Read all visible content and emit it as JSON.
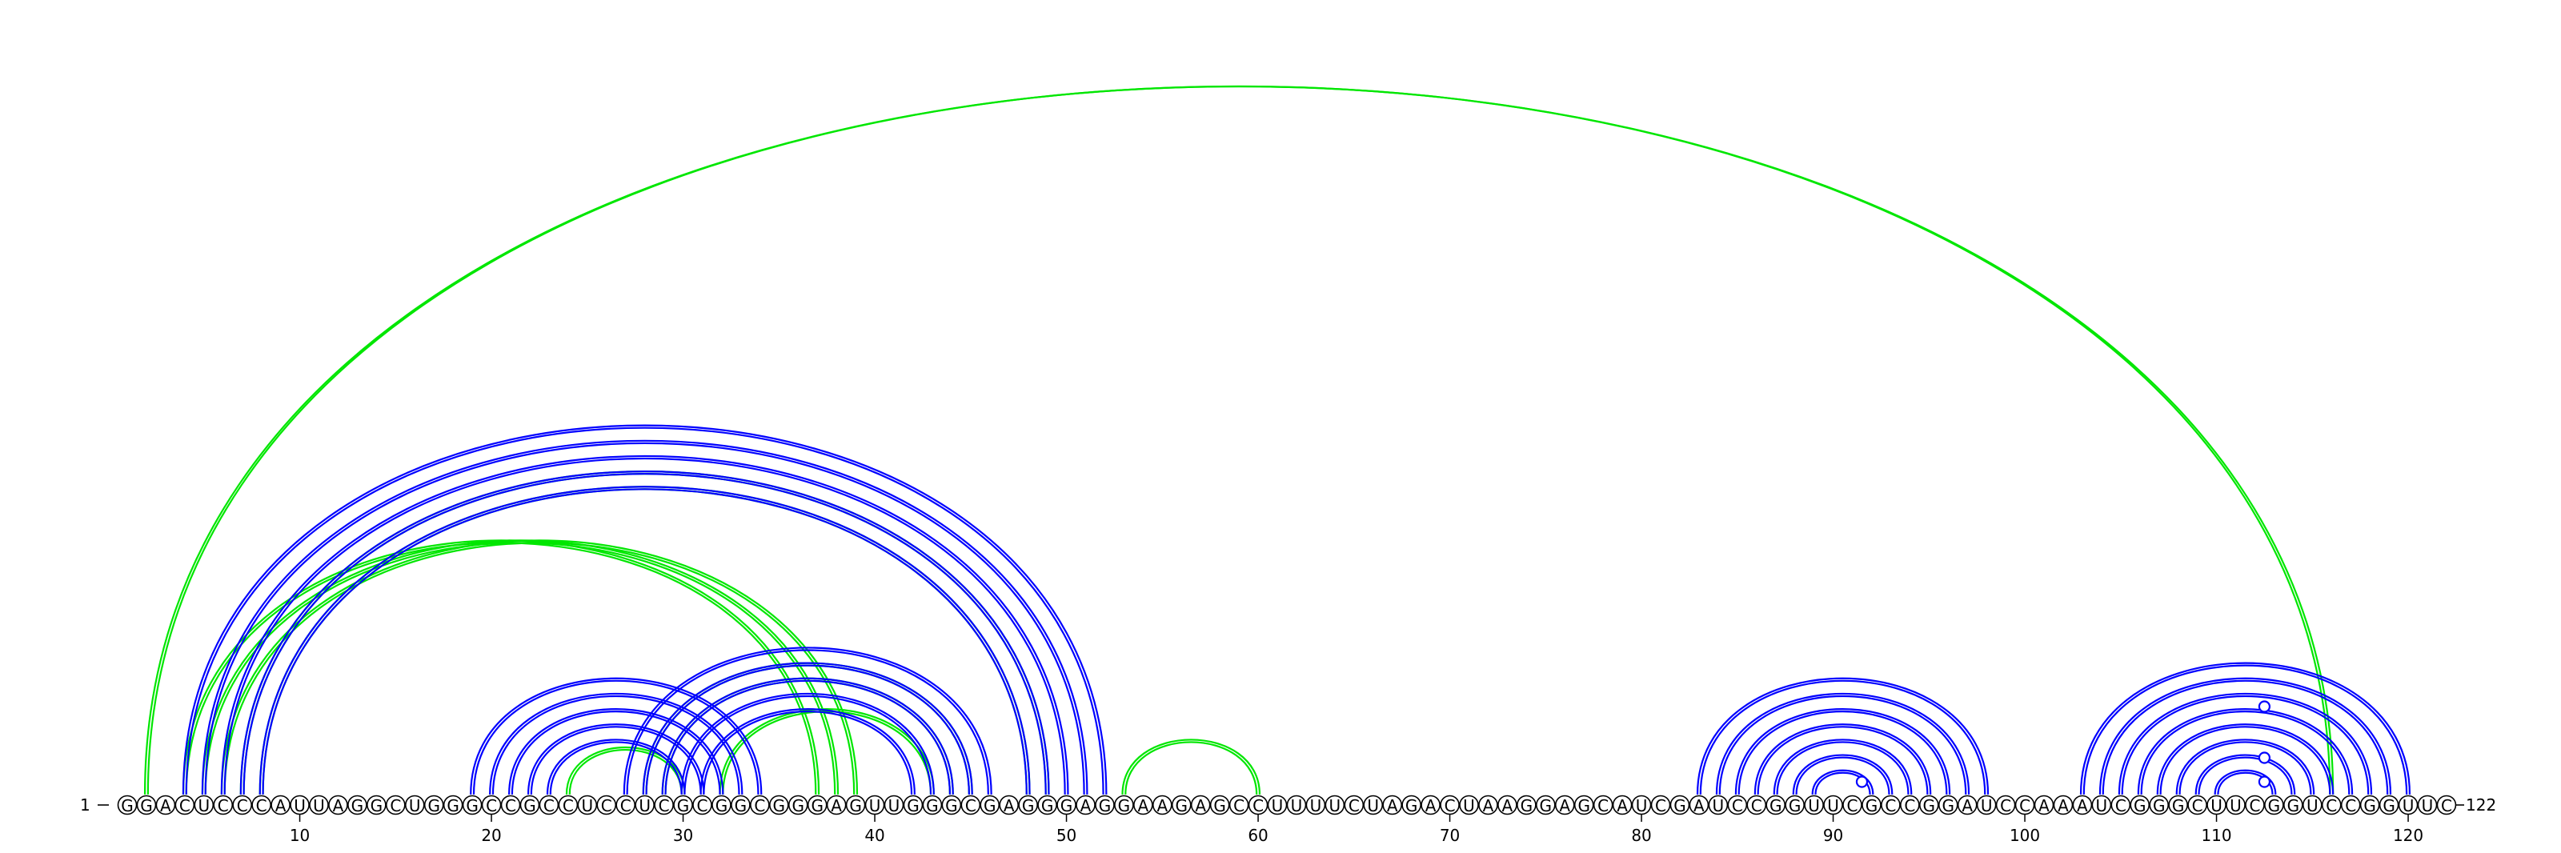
{
  "start_label": "1",
  "end_label": "122",
  "sequence": "GGACUCCCAUUAGGCUGGGCCGCCUCCUCGCGGCGGGAGUUGGGCGAGGGAGGAAGAGCCUUUUCUAGACUAAGGAGCAUCGAUCCGGUUCGCCGGAUCCAAAUCGGGCUUCGGUCCGGUUC",
  "colors": {
    "blue": "#0000ff",
    "green": "#00e600"
  },
  "chart_data": {
    "type": "arc-diagram",
    "x_ticks": [
      10,
      20,
      30,
      40,
      50,
      60,
      70,
      80,
      90,
      100,
      110,
      120
    ],
    "pairs_green": [
      [
        2,
        116
      ],
      [
        4,
        37
      ],
      [
        5,
        38
      ],
      [
        6,
        39
      ],
      [
        7,
        49
      ],
      [
        8,
        48
      ],
      [
        24,
        30
      ],
      [
        28,
        45
      ],
      [
        29,
        44
      ],
      [
        32,
        43
      ],
      [
        53,
        60
      ]
    ],
    "pairs_blue": [
      [
        4,
        52
      ],
      [
        5,
        51
      ],
      [
        6,
        50
      ],
      [
        7,
        49
      ],
      [
        8,
        48
      ],
      [
        19,
        34
      ],
      [
        20,
        33
      ],
      [
        21,
        32
      ],
      [
        22,
        31
      ],
      [
        23,
        30
      ],
      [
        27,
        46
      ],
      [
        28,
        45
      ],
      [
        29,
        44
      ],
      [
        30,
        43
      ],
      [
        31,
        42
      ],
      [
        83,
        98
      ],
      [
        84,
        97
      ],
      [
        85,
        96
      ],
      [
        86,
        95
      ],
      [
        87,
        94
      ],
      [
        88,
        93
      ],
      [
        89,
        92
      ],
      [
        103,
        120
      ],
      [
        104,
        119
      ],
      [
        105,
        118
      ],
      [
        106,
        117
      ],
      [
        107,
        116
      ],
      [
        108,
        115
      ],
      [
        109,
        114
      ],
      [
        110,
        113
      ]
    ],
    "markers": [
      [
        91,
        1
      ],
      [
        112,
        1
      ],
      [
        112,
        2
      ],
      [
        112,
        3
      ]
    ]
  }
}
